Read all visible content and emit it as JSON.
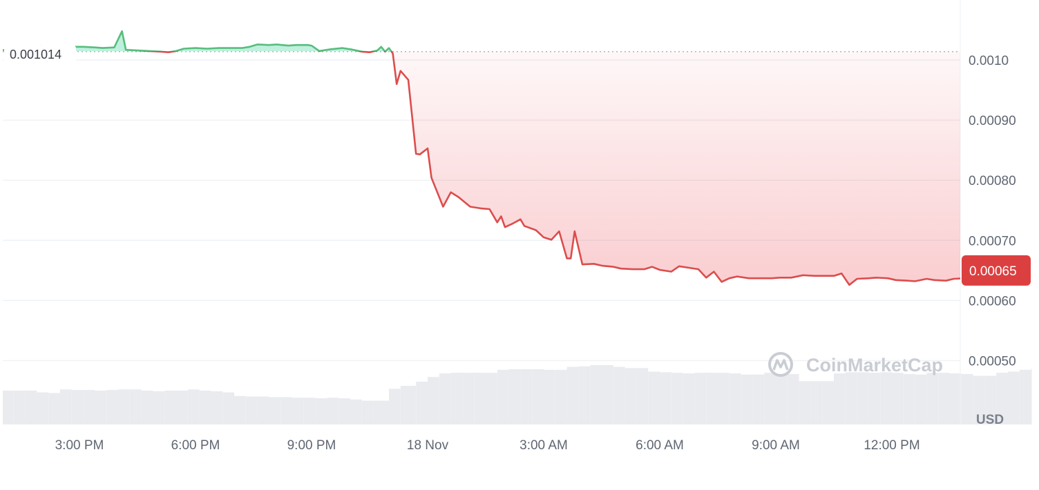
{
  "chart_data": {
    "type": "area",
    "currency": "USD",
    "reference_label": "0.001014",
    "reference_value": 0.001014,
    "current_label": "0.00065",
    "current_value": 0.00065,
    "y_ticks": [
      {
        "value": 0.001,
        "label": "0.0010"
      },
      {
        "value": 0.0009,
        "label": "0.00090"
      },
      {
        "value": 0.0008,
        "label": "0.00080"
      },
      {
        "value": 0.0007,
        "label": "0.00070"
      },
      {
        "value": 0.0006,
        "label": "0.00060"
      },
      {
        "value": 0.0005,
        "label": "0.00050"
      }
    ],
    "x_ticks": [
      {
        "hour": 15,
        "label": "3:00 PM"
      },
      {
        "hour": 18,
        "label": "6:00 PM"
      },
      {
        "hour": 21,
        "label": "9:00 PM"
      },
      {
        "hour": 24,
        "label": "18 Nov"
      },
      {
        "hour": 27,
        "label": "3:00 AM"
      },
      {
        "hour": 30,
        "label": "6:00 AM"
      },
      {
        "hour": 33,
        "label": "9:00 AM"
      },
      {
        "hour": 36,
        "label": "12:00 PM"
      }
    ],
    "x_unit": "hours from 17 Nov 00:00",
    "grid": true,
    "colors": {
      "up": "#16c784",
      "up_line": "#57bd7d",
      "down": "#ea3943",
      "down_line": "#dc4c4c",
      "volume": "#e9ebef",
      "grid": "#eff2f5"
    },
    "price": [
      [
        13.0,
        0.001017
      ],
      [
        13.2,
        0.001015
      ],
      [
        13.4,
        0.00102
      ],
      [
        13.7,
        0.001018
      ],
      [
        14.0,
        0.001023
      ],
      [
        14.2,
        0.001019
      ],
      [
        14.5,
        0.001022
      ],
      [
        14.8,
        0.001022
      ],
      [
        15.1,
        0.001022
      ],
      [
        15.4,
        0.001021
      ],
      [
        15.6,
        0.00102
      ],
      [
        15.9,
        0.001021
      ],
      [
        16.1,
        0.001048
      ],
      [
        16.2,
        0.001017
      ],
      [
        16.5,
        0.001016
      ],
      [
        16.8,
        0.001015
      ],
      [
        17.1,
        0.001014
      ],
      [
        17.3,
        0.001013
      ],
      [
        17.5,
        0.001015
      ],
      [
        17.7,
        0.001019
      ],
      [
        18.0,
        0.00102
      ],
      [
        18.3,
        0.001019
      ],
      [
        18.6,
        0.00102
      ],
      [
        18.9,
        0.00102
      ],
      [
        19.2,
        0.00102
      ],
      [
        19.4,
        0.001022
      ],
      [
        19.6,
        0.001026
      ],
      [
        19.9,
        0.001025
      ],
      [
        20.1,
        0.001026
      ],
      [
        20.4,
        0.001024
      ],
      [
        20.6,
        0.001025
      ],
      [
        20.9,
        0.001025
      ],
      [
        21.0,
        0.001024
      ],
      [
        21.2,
        0.001015
      ],
      [
        21.5,
        0.001018
      ],
      [
        21.8,
        0.00102
      ],
      [
        22.0,
        0.001018
      ],
      [
        22.3,
        0.001014
      ],
      [
        22.5,
        0.001013
      ],
      [
        22.7,
        0.001016
      ],
      [
        22.8,
        0.001022
      ],
      [
        22.9,
        0.001014
      ],
      [
        23.0,
        0.00102
      ],
      [
        23.1,
        0.001011
      ],
      [
        23.2,
        0.00096
      ],
      [
        23.3,
        0.000982
      ],
      [
        23.5,
        0.000967
      ],
      [
        23.7,
        0.000844
      ],
      [
        23.8,
        0.000843
      ],
      [
        24.0,
        0.000853
      ],
      [
        24.1,
        0.000804
      ],
      [
        24.4,
        0.000756
      ],
      [
        24.6,
        0.00078
      ],
      [
        24.8,
        0.000772
      ],
      [
        25.1,
        0.000756
      ],
      [
        25.4,
        0.000753
      ],
      [
        25.6,
        0.000752
      ],
      [
        25.8,
        0.00073
      ],
      [
        25.9,
        0.00074
      ],
      [
        26.0,
        0.000722
      ],
      [
        26.2,
        0.000728
      ],
      [
        26.4,
        0.000735
      ],
      [
        26.5,
        0.000724
      ],
      [
        26.8,
        0.000717
      ],
      [
        27.0,
        0.000705
      ],
      [
        27.2,
        0.000701
      ],
      [
        27.4,
        0.000715
      ],
      [
        27.6,
        0.00067
      ],
      [
        27.7,
        0.00067
      ],
      [
        27.8,
        0.000715
      ],
      [
        28.0,
        0.00066
      ],
      [
        28.3,
        0.000661
      ],
      [
        28.5,
        0.000658
      ],
      [
        28.8,
        0.000656
      ],
      [
        29.0,
        0.000653
      ],
      [
        29.3,
        0.000652
      ],
      [
        29.6,
        0.000652
      ],
      [
        29.8,
        0.000656
      ],
      [
        30.0,
        0.000651
      ],
      [
        30.3,
        0.000648
      ],
      [
        30.5,
        0.000657
      ],
      [
        30.8,
        0.000654
      ],
      [
        31.0,
        0.000652
      ],
      [
        31.2,
        0.000638
      ],
      [
        31.4,
        0.000648
      ],
      [
        31.6,
        0.000631
      ],
      [
        31.8,
        0.000637
      ],
      [
        32.0,
        0.00064
      ],
      [
        32.3,
        0.000637
      ],
      [
        32.6,
        0.000637
      ],
      [
        32.9,
        0.000637
      ],
      [
        33.1,
        0.000638
      ],
      [
        33.4,
        0.000638
      ],
      [
        33.7,
        0.000642
      ],
      [
        34.0,
        0.000641
      ],
      [
        34.3,
        0.000641
      ],
      [
        34.5,
        0.000641
      ],
      [
        34.7,
        0.000645
      ],
      [
        34.9,
        0.000626
      ],
      [
        35.1,
        0.000636
      ],
      [
        35.4,
        0.000637
      ],
      [
        35.6,
        0.000638
      ],
      [
        35.9,
        0.000637
      ],
      [
        36.1,
        0.000634
      ],
      [
        36.4,
        0.000633
      ],
      [
        36.6,
        0.000632
      ],
      [
        36.9,
        0.000636
      ],
      [
        37.1,
        0.000634
      ],
      [
        37.4,
        0.000633
      ],
      [
        37.6,
        0.000636
      ],
      [
        37.9,
        0.000637
      ],
      [
        38.1,
        0.000643
      ],
      [
        38.4,
        0.000646
      ],
      [
        38.7,
        0.000648
      ],
      [
        39.0,
        0.000649
      ],
      [
        39.3,
        0.000649
      ],
      [
        39.5,
        0.00065
      ],
      [
        39.8,
        0.000651
      ]
    ],
    "volume": [
      [
        13.0,
        57
      ],
      [
        13.3,
        57
      ],
      [
        13.6,
        57
      ],
      [
        13.9,
        54
      ],
      [
        14.2,
        53
      ],
      [
        14.5,
        59
      ],
      [
        14.8,
        58
      ],
      [
        15.1,
        58
      ],
      [
        15.4,
        57
      ],
      [
        15.7,
        58
      ],
      [
        16.0,
        59
      ],
      [
        16.3,
        59
      ],
      [
        16.6,
        57
      ],
      [
        16.9,
        56
      ],
      [
        17.2,
        57
      ],
      [
        17.5,
        57
      ],
      [
        17.8,
        59
      ],
      [
        18.1,
        57
      ],
      [
        18.4,
        56
      ],
      [
        18.7,
        54
      ],
      [
        19.0,
        48
      ],
      [
        19.3,
        47
      ],
      [
        19.6,
        47
      ],
      [
        19.9,
        46
      ],
      [
        20.2,
        46
      ],
      [
        20.5,
        45
      ],
      [
        20.8,
        45
      ],
      [
        21.1,
        44
      ],
      [
        21.4,
        45
      ],
      [
        21.7,
        44
      ],
      [
        22.0,
        42
      ],
      [
        22.3,
        40
      ],
      [
        22.6,
        40
      ],
      [
        23.0,
        60
      ],
      [
        23.3,
        65
      ],
      [
        23.7,
        72
      ],
      [
        24.0,
        80
      ],
      [
        24.3,
        86
      ],
      [
        24.6,
        87
      ],
      [
        24.9,
        87
      ],
      [
        25.2,
        87
      ],
      [
        25.5,
        87
      ],
      [
        25.8,
        92
      ],
      [
        26.1,
        93
      ],
      [
        26.4,
        93
      ],
      [
        26.7,
        93
      ],
      [
        27.0,
        92
      ],
      [
        27.3,
        92
      ],
      [
        27.6,
        97
      ],
      [
        27.9,
        98
      ],
      [
        28.2,
        100
      ],
      [
        28.5,
        100
      ],
      [
        28.8,
        97
      ],
      [
        29.1,
        95
      ],
      [
        29.4,
        95
      ],
      [
        29.7,
        89
      ],
      [
        30.0,
        88
      ],
      [
        30.3,
        87
      ],
      [
        30.6,
        86
      ],
      [
        30.9,
        87
      ],
      [
        31.2,
        87
      ],
      [
        31.5,
        87
      ],
      [
        31.8,
        86
      ],
      [
        32.1,
        84
      ],
      [
        32.4,
        84
      ],
      [
        32.7,
        87
      ],
      [
        33.0,
        85
      ],
      [
        33.3,
        85
      ],
      [
        33.6,
        73
      ],
      [
        33.9,
        73
      ],
      [
        34.2,
        73
      ],
      [
        34.5,
        86
      ],
      [
        34.8,
        88
      ],
      [
        35.1,
        88
      ],
      [
        35.4,
        87
      ],
      [
        35.7,
        88
      ],
      [
        36.0,
        87
      ],
      [
        36.3,
        85
      ],
      [
        36.6,
        84
      ],
      [
        36.9,
        87
      ],
      [
        37.2,
        87
      ],
      [
        37.5,
        86
      ],
      [
        37.8,
        85
      ],
      [
        38.1,
        82
      ],
      [
        38.4,
        82
      ],
      [
        38.7,
        87
      ],
      [
        39.0,
        89
      ],
      [
        39.3,
        92
      ],
      [
        39.6,
        94
      ]
    ]
  },
  "watermark": {
    "brand": "CoinMarketCap"
  }
}
